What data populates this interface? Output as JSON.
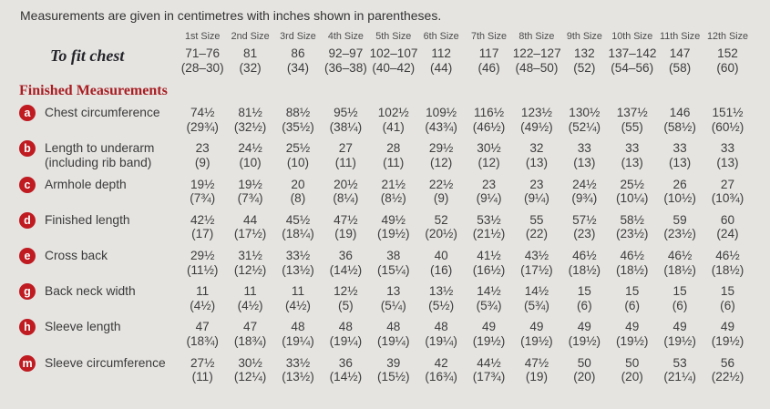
{
  "intro": "Measurements are given in centimetres with inches shown in parentheses.",
  "colors": {
    "background": "#e5e4e1",
    "badge_red": "#bf1b21",
    "heading_red": "#a81e23",
    "text": "#3d3d3d"
  },
  "table": {
    "size_headers": [
      "1st Size",
      "2nd Size",
      "3rd Size",
      "4th Size",
      "5th Size",
      "6th Size",
      "7th Size",
      "8th Size",
      "9th Size",
      "10th Size",
      "11th Size",
      "12th Size"
    ],
    "to_fit_chest": {
      "label": "To fit chest",
      "cm": [
        "71–76",
        "81",
        "86",
        "92–97",
        "102–107",
        "112",
        "117",
        "122–127",
        "132",
        "137–142",
        "147",
        "152"
      ],
      "inches": [
        "(28–30)",
        "(32)",
        "(34)",
        "(36–38)",
        "(40–42)",
        "(44)",
        "(46)",
        "(48–50)",
        "(52)",
        "(54–56)",
        "(58)",
        "(60)"
      ]
    },
    "section_heading": "Finished Measurements",
    "rows": [
      {
        "key": "a",
        "label": "Chest circumference",
        "label2": "",
        "cm": [
          "74½",
          "81½",
          "88½",
          "95½",
          "102½",
          "109½",
          "116½",
          "123½",
          "130½",
          "137½",
          "146",
          "151½"
        ],
        "inches": [
          "(29¾)",
          "(32½)",
          "(35½)",
          "(38¼)",
          "(41)",
          "(43¾)",
          "(46½)",
          "(49½)",
          "(52¼)",
          "(55)",
          "(58½)",
          "(60½)"
        ]
      },
      {
        "key": "b",
        "label": "Length to underarm",
        "label2": "(including rib band)",
        "cm": [
          "23",
          "24½",
          "25½",
          "27",
          "28",
          "29½",
          "30½",
          "32",
          "33",
          "33",
          "33",
          "33"
        ],
        "inches": [
          "(9)",
          "(10)",
          "(10)",
          "(11)",
          "(11)",
          "(12)",
          "(12)",
          "(13)",
          "(13)",
          "(13)",
          "(13)",
          "(13)"
        ]
      },
      {
        "key": "c",
        "label": "Armhole depth",
        "label2": "",
        "cm": [
          "19½",
          "19½",
          "20",
          "20½",
          "21½",
          "22½",
          "23",
          "23",
          "24½",
          "25½",
          "26",
          "27"
        ],
        "inches": [
          "(7¾)",
          "(7¾)",
          "(8)",
          "(8¼)",
          "(8½)",
          "(9)",
          "(9¼)",
          "(9¼)",
          "(9¾)",
          "(10¼)",
          "(10½)",
          "(10¾)"
        ]
      },
      {
        "key": "d",
        "label": "Finished length",
        "label2": "",
        "cm": [
          "42½",
          "44",
          "45½",
          "47½",
          "49½",
          "52",
          "53½",
          "55",
          "57½",
          "58½",
          "59",
          "60"
        ],
        "inches": [
          "(17)",
          "(17½)",
          "(18¼)",
          "(19)",
          "(19½)",
          "(20½)",
          "(21½)",
          "(22)",
          "(23)",
          "(23½)",
          "(23½)",
          "(24)"
        ]
      },
      {
        "key": "e",
        "label": "Cross back",
        "label2": "",
        "cm": [
          "29½",
          "31½",
          "33½",
          "36",
          "38",
          "40",
          "41½",
          "43½",
          "46½",
          "46½",
          "46½",
          "46½"
        ],
        "inches": [
          "(11½)",
          "(12½)",
          "(13½)",
          "(14½)",
          "(15¼)",
          "(16)",
          "(16½)",
          "(17½)",
          "(18½)",
          "(18½)",
          "(18½)",
          "(18½)"
        ]
      },
      {
        "key": "g",
        "label": "Back neck width",
        "label2": "",
        "cm": [
          "11",
          "11",
          "11",
          "12½",
          "13",
          "13½",
          "14½",
          "14½",
          "15",
          "15",
          "15",
          "15"
        ],
        "inches": [
          "(4½)",
          "(4½)",
          "(4½)",
          "(5)",
          "(5¼)",
          "(5½)",
          "(5¾)",
          "(5¾)",
          "(6)",
          "(6)",
          "(6)",
          "(6)"
        ]
      },
      {
        "key": "h",
        "label": "Sleeve length",
        "label2": "",
        "cm": [
          "47",
          "47",
          "48",
          "48",
          "48",
          "48",
          "49",
          "49",
          "49",
          "49",
          "49",
          "49"
        ],
        "inches": [
          "(18¾)",
          "(18¾)",
          "(19¼)",
          "(19¼)",
          "(19¼)",
          "(19¼)",
          "(19½)",
          "(19½)",
          "(19½)",
          "(19½)",
          "(19½)",
          "(19½)"
        ]
      },
      {
        "key": "m",
        "label": "Sleeve circumference",
        "label2": "",
        "cm": [
          "27½",
          "30½",
          "33½",
          "36",
          "39",
          "42",
          "44½",
          "47½",
          "50",
          "50",
          "53",
          "56"
        ],
        "inches": [
          "(11)",
          "(12¼)",
          "(13½)",
          "(14½)",
          "(15½)",
          "(16¾)",
          "(17¾)",
          "(19)",
          "(20)",
          "(20)",
          "(21¼)",
          "(22½)"
        ]
      }
    ]
  }
}
